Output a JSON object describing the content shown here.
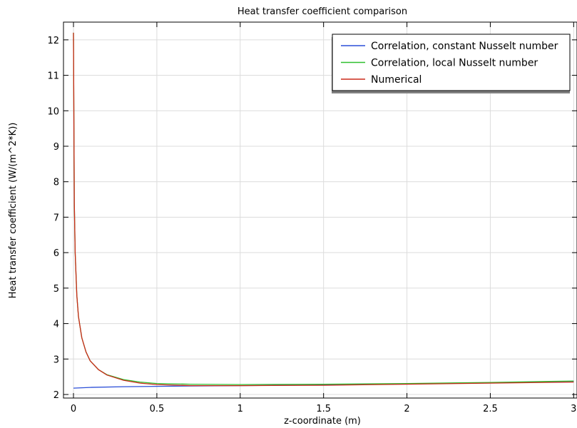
{
  "chart_data": {
    "type": "line",
    "title": "Heat transfer coefficient comparison",
    "xlabel": "z-coordinate (m)",
    "ylabel": "Heat transfer coefficient (W/(m^2*K))",
    "xlim": [
      -0.06,
      3.02
    ],
    "ylim": [
      1.9,
      12.5
    ],
    "xticks": [
      0,
      0.5,
      1,
      1.5,
      2,
      2.5,
      3
    ],
    "xtick_labels": [
      "0",
      "0.5",
      "1",
      "1.5",
      "2",
      "2.5",
      "3"
    ],
    "yticks": [
      2,
      3,
      4,
      5,
      6,
      7,
      8,
      9,
      10,
      11,
      12
    ],
    "ytick_labels": [
      "2",
      "3",
      "4",
      "5",
      "6",
      "7",
      "8",
      "9",
      "10",
      "11",
      "12"
    ],
    "grid": true,
    "legend_position": "top-right",
    "series": [
      {
        "name": "Correlation, constant Nusselt number",
        "color": "#2b4fd8",
        "x": [
          0,
          0.1,
          0.3,
          0.5,
          0.7,
          1.0,
          1.5,
          2.0,
          2.5,
          3.0
        ],
        "y": [
          2.18,
          2.2,
          2.22,
          2.23,
          2.24,
          2.25,
          2.27,
          2.3,
          2.33,
          2.36
        ]
      },
      {
        "name": "Correlation, local Nusselt number",
        "color": "#2fbf2f",
        "x": [
          0,
          0.005,
          0.01,
          0.02,
          0.03,
          0.05,
          0.075,
          0.1,
          0.15,
          0.2,
          0.3,
          0.4,
          0.5,
          0.7,
          1.0,
          1.5,
          2.0,
          2.5,
          3.0
        ],
        "y": [
          12.2,
          7.4,
          6.0,
          4.8,
          4.2,
          3.6,
          3.2,
          2.95,
          2.7,
          2.56,
          2.42,
          2.35,
          2.31,
          2.29,
          2.28,
          2.29,
          2.31,
          2.34,
          2.38
        ]
      },
      {
        "name": "Numerical",
        "color": "#cc2a1a",
        "x": [
          0,
          0.005,
          0.01,
          0.02,
          0.03,
          0.05,
          0.075,
          0.1,
          0.15,
          0.2,
          0.3,
          0.4,
          0.5,
          0.7,
          1.0,
          1.5,
          2.0,
          2.5,
          3.0
        ],
        "y": [
          12.2,
          7.4,
          6.0,
          4.8,
          4.2,
          3.6,
          3.2,
          2.95,
          2.7,
          2.55,
          2.4,
          2.32,
          2.28,
          2.25,
          2.25,
          2.26,
          2.29,
          2.32,
          2.35
        ]
      }
    ]
  }
}
